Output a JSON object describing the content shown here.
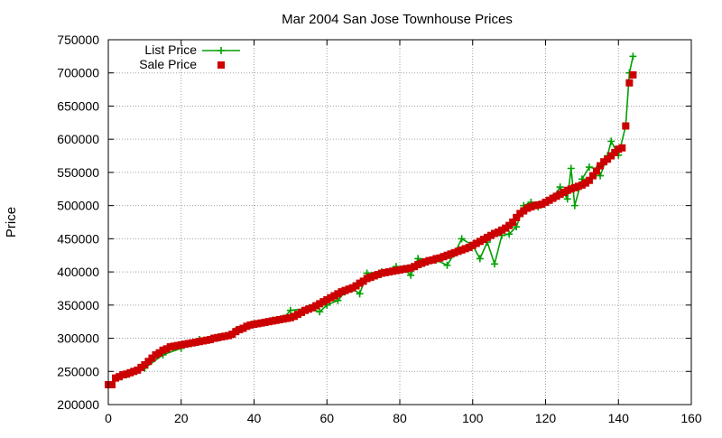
{
  "chart_data": {
    "type": "line",
    "title": "Mar 2004 San Jose Townhouse Prices",
    "xlabel": "",
    "ylabel": "Price",
    "xlim": [
      0,
      160
    ],
    "ylim": [
      200000,
      750000
    ],
    "xticks": [
      "0",
      "20",
      "40",
      "60",
      "80",
      "100",
      "120",
      "140",
      "160"
    ],
    "yticks": [
      "200000",
      "250000",
      "300000",
      "350000",
      "400000",
      "450000",
      "500000",
      "550000",
      "600000",
      "650000",
      "700000",
      "750000"
    ],
    "grid": true,
    "legend_position": "top-left",
    "colors": {
      "list": "#00a000",
      "sale": "#cc0000"
    },
    "series": [
      {
        "name": "List Price",
        "style": "line-plus",
        "x": [
          0,
          5,
          10,
          15,
          20,
          25,
          30,
          35,
          40,
          45,
          48,
          50,
          55,
          58,
          60,
          63,
          65,
          67,
          69,
          71,
          75,
          79,
          81,
          83,
          85,
          90,
          93,
          95,
          97,
          100,
          102,
          104,
          106,
          108,
          110,
          112,
          114,
          116,
          118,
          120,
          122,
          124,
          126,
          127,
          128,
          130,
          132,
          134,
          135,
          137,
          138,
          140,
          142,
          143,
          144
        ],
        "y": [
          230000,
          245000,
          255000,
          275000,
          285000,
          298000,
          300000,
          312000,
          322000,
          327000,
          330000,
          342000,
          345000,
          340000,
          350000,
          357000,
          370000,
          375000,
          367000,
          398000,
          400000,
          408000,
          405000,
          395000,
          420000,
          418000,
          410000,
          428000,
          450000,
          440000,
          420000,
          445000,
          412000,
          455000,
          457000,
          468000,
          500000,
          505000,
          498000,
          505000,
          512000,
          528000,
          510000,
          556000,
          500000,
          540000,
          558000,
          555000,
          545000,
          575000,
          597000,
          576000,
          620000,
          700000,
          725000
        ]
      },
      {
        "name": "Sale Price",
        "style": "square-points",
        "x": [
          0,
          1,
          2,
          3,
          4,
          5,
          6,
          7,
          8,
          9,
          10,
          11,
          12,
          13,
          14,
          15,
          16,
          17,
          18,
          19,
          20,
          21,
          22,
          23,
          24,
          25,
          26,
          27,
          28,
          29,
          30,
          31,
          32,
          33,
          34,
          35,
          36,
          37,
          38,
          39,
          40,
          41,
          42,
          43,
          44,
          45,
          46,
          47,
          48,
          49,
          50,
          51,
          52,
          53,
          54,
          55,
          56,
          57,
          58,
          59,
          60,
          61,
          62,
          63,
          64,
          65,
          66,
          67,
          68,
          69,
          70,
          71,
          72,
          73,
          74,
          75,
          76,
          77,
          78,
          79,
          80,
          81,
          82,
          83,
          84,
          85,
          86,
          87,
          88,
          89,
          90,
          91,
          92,
          93,
          94,
          95,
          96,
          97,
          98,
          99,
          100,
          101,
          102,
          103,
          104,
          105,
          106,
          107,
          108,
          109,
          110,
          111,
          112,
          113,
          114,
          115,
          116,
          117,
          118,
          119,
          120,
          121,
          122,
          123,
          124,
          125,
          126,
          127,
          128,
          129,
          130,
          131,
          132,
          133,
          134,
          135,
          136,
          137,
          138,
          139,
          140,
          141,
          142,
          143,
          144
        ],
        "y": [
          230000,
          230000,
          240000,
          242000,
          245000,
          246000,
          248000,
          250000,
          252000,
          256000,
          260000,
          265000,
          270000,
          275000,
          278000,
          282000,
          284000,
          287000,
          288000,
          289000,
          290000,
          291000,
          292000,
          293000,
          294000,
          295000,
          296000,
          297000,
          298000,
          300000,
          301000,
          302000,
          303000,
          304000,
          306000,
          310000,
          313000,
          315000,
          318000,
          320000,
          321000,
          322000,
          323000,
          324000,
          325000,
          326000,
          327000,
          328000,
          329000,
          330000,
          331000,
          333000,
          336000,
          339000,
          342000,
          344000,
          346000,
          349000,
          352000,
          355000,
          358000,
          361000,
          364000,
          367000,
          370000,
          372000,
          374000,
          376000,
          379000,
          383000,
          386000,
          390000,
          392000,
          394000,
          396000,
          398000,
          399000,
          400000,
          401000,
          402000,
          403000,
          404000,
          405000,
          406000,
          408000,
          411000,
          413000,
          415000,
          417000,
          418000,
          420000,
          421000,
          423000,
          425000,
          427000,
          429000,
          431000,
          433000,
          435000,
          437000,
          440000,
          443000,
          446000,
          449000,
          452000,
          455000,
          458000,
          460000,
          463000,
          466000,
          470000,
          475000,
          482000,
          488000,
          492000,
          496000,
          498000,
          500000,
          501000,
          502000,
          505000,
          508000,
          511000,
          514000,
          517000,
          520000,
          523000,
          525000,
          527000,
          529000,
          531000,
          534000,
          538000,
          545000,
          552000,
          560000,
          566000,
          570000,
          575000,
          580000,
          585000,
          587000,
          620000,
          685000,
          697000
        ]
      }
    ]
  }
}
